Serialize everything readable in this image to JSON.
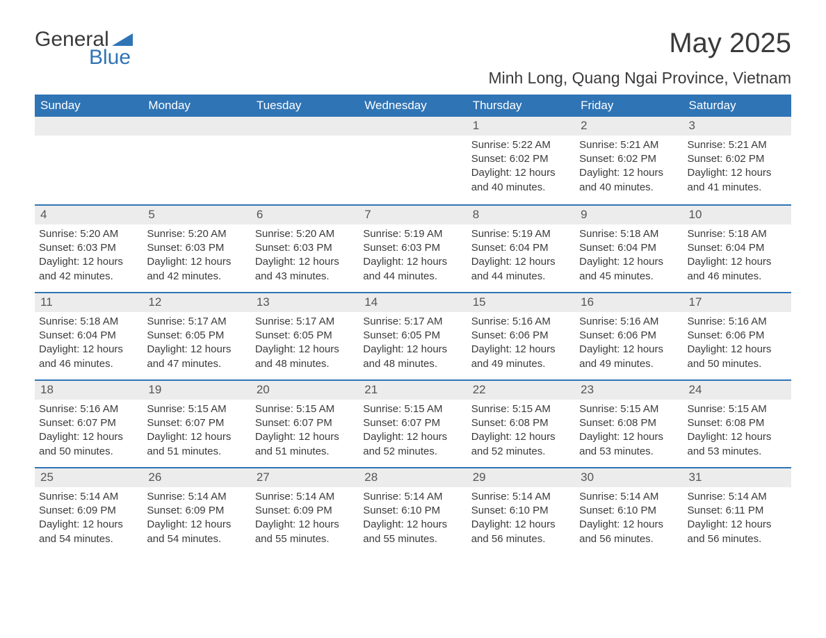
{
  "logo": {
    "word1": "General",
    "word2": "Blue"
  },
  "title": "May 2025",
  "location": "Minh Long, Quang Ngai Province, Vietnam",
  "colors": {
    "brand_blue": "#2f74b5",
    "header_text": "#ffffff",
    "row_bg": "#ececec",
    "text": "#3a3a3a",
    "background": "#ffffff"
  },
  "day_names": [
    "Sunday",
    "Monday",
    "Tuesday",
    "Wednesday",
    "Thursday",
    "Friday",
    "Saturday"
  ],
  "weeks": [
    [
      null,
      null,
      null,
      null,
      {
        "day": "1",
        "sunrise": "Sunrise: 5:22 AM",
        "sunset": "Sunset: 6:02 PM",
        "daylight1": "Daylight: 12 hours",
        "daylight2": "and 40 minutes."
      },
      {
        "day": "2",
        "sunrise": "Sunrise: 5:21 AM",
        "sunset": "Sunset: 6:02 PM",
        "daylight1": "Daylight: 12 hours",
        "daylight2": "and 40 minutes."
      },
      {
        "day": "3",
        "sunrise": "Sunrise: 5:21 AM",
        "sunset": "Sunset: 6:02 PM",
        "daylight1": "Daylight: 12 hours",
        "daylight2": "and 41 minutes."
      }
    ],
    [
      {
        "day": "4",
        "sunrise": "Sunrise: 5:20 AM",
        "sunset": "Sunset: 6:03 PM",
        "daylight1": "Daylight: 12 hours",
        "daylight2": "and 42 minutes."
      },
      {
        "day": "5",
        "sunrise": "Sunrise: 5:20 AM",
        "sunset": "Sunset: 6:03 PM",
        "daylight1": "Daylight: 12 hours",
        "daylight2": "and 42 minutes."
      },
      {
        "day": "6",
        "sunrise": "Sunrise: 5:20 AM",
        "sunset": "Sunset: 6:03 PM",
        "daylight1": "Daylight: 12 hours",
        "daylight2": "and 43 minutes."
      },
      {
        "day": "7",
        "sunrise": "Sunrise: 5:19 AM",
        "sunset": "Sunset: 6:03 PM",
        "daylight1": "Daylight: 12 hours",
        "daylight2": "and 44 minutes."
      },
      {
        "day": "8",
        "sunrise": "Sunrise: 5:19 AM",
        "sunset": "Sunset: 6:04 PM",
        "daylight1": "Daylight: 12 hours",
        "daylight2": "and 44 minutes."
      },
      {
        "day": "9",
        "sunrise": "Sunrise: 5:18 AM",
        "sunset": "Sunset: 6:04 PM",
        "daylight1": "Daylight: 12 hours",
        "daylight2": "and 45 minutes."
      },
      {
        "day": "10",
        "sunrise": "Sunrise: 5:18 AM",
        "sunset": "Sunset: 6:04 PM",
        "daylight1": "Daylight: 12 hours",
        "daylight2": "and 46 minutes."
      }
    ],
    [
      {
        "day": "11",
        "sunrise": "Sunrise: 5:18 AM",
        "sunset": "Sunset: 6:04 PM",
        "daylight1": "Daylight: 12 hours",
        "daylight2": "and 46 minutes."
      },
      {
        "day": "12",
        "sunrise": "Sunrise: 5:17 AM",
        "sunset": "Sunset: 6:05 PM",
        "daylight1": "Daylight: 12 hours",
        "daylight2": "and 47 minutes."
      },
      {
        "day": "13",
        "sunrise": "Sunrise: 5:17 AM",
        "sunset": "Sunset: 6:05 PM",
        "daylight1": "Daylight: 12 hours",
        "daylight2": "and 48 minutes."
      },
      {
        "day": "14",
        "sunrise": "Sunrise: 5:17 AM",
        "sunset": "Sunset: 6:05 PM",
        "daylight1": "Daylight: 12 hours",
        "daylight2": "and 48 minutes."
      },
      {
        "day": "15",
        "sunrise": "Sunrise: 5:16 AM",
        "sunset": "Sunset: 6:06 PM",
        "daylight1": "Daylight: 12 hours",
        "daylight2": "and 49 minutes."
      },
      {
        "day": "16",
        "sunrise": "Sunrise: 5:16 AM",
        "sunset": "Sunset: 6:06 PM",
        "daylight1": "Daylight: 12 hours",
        "daylight2": "and 49 minutes."
      },
      {
        "day": "17",
        "sunrise": "Sunrise: 5:16 AM",
        "sunset": "Sunset: 6:06 PM",
        "daylight1": "Daylight: 12 hours",
        "daylight2": "and 50 minutes."
      }
    ],
    [
      {
        "day": "18",
        "sunrise": "Sunrise: 5:16 AM",
        "sunset": "Sunset: 6:07 PM",
        "daylight1": "Daylight: 12 hours",
        "daylight2": "and 50 minutes."
      },
      {
        "day": "19",
        "sunrise": "Sunrise: 5:15 AM",
        "sunset": "Sunset: 6:07 PM",
        "daylight1": "Daylight: 12 hours",
        "daylight2": "and 51 minutes."
      },
      {
        "day": "20",
        "sunrise": "Sunrise: 5:15 AM",
        "sunset": "Sunset: 6:07 PM",
        "daylight1": "Daylight: 12 hours",
        "daylight2": "and 51 minutes."
      },
      {
        "day": "21",
        "sunrise": "Sunrise: 5:15 AM",
        "sunset": "Sunset: 6:07 PM",
        "daylight1": "Daylight: 12 hours",
        "daylight2": "and 52 minutes."
      },
      {
        "day": "22",
        "sunrise": "Sunrise: 5:15 AM",
        "sunset": "Sunset: 6:08 PM",
        "daylight1": "Daylight: 12 hours",
        "daylight2": "and 52 minutes."
      },
      {
        "day": "23",
        "sunrise": "Sunrise: 5:15 AM",
        "sunset": "Sunset: 6:08 PM",
        "daylight1": "Daylight: 12 hours",
        "daylight2": "and 53 minutes."
      },
      {
        "day": "24",
        "sunrise": "Sunrise: 5:15 AM",
        "sunset": "Sunset: 6:08 PM",
        "daylight1": "Daylight: 12 hours",
        "daylight2": "and 53 minutes."
      }
    ],
    [
      {
        "day": "25",
        "sunrise": "Sunrise: 5:14 AM",
        "sunset": "Sunset: 6:09 PM",
        "daylight1": "Daylight: 12 hours",
        "daylight2": "and 54 minutes."
      },
      {
        "day": "26",
        "sunrise": "Sunrise: 5:14 AM",
        "sunset": "Sunset: 6:09 PM",
        "daylight1": "Daylight: 12 hours",
        "daylight2": "and 54 minutes."
      },
      {
        "day": "27",
        "sunrise": "Sunrise: 5:14 AM",
        "sunset": "Sunset: 6:09 PM",
        "daylight1": "Daylight: 12 hours",
        "daylight2": "and 55 minutes."
      },
      {
        "day": "28",
        "sunrise": "Sunrise: 5:14 AM",
        "sunset": "Sunset: 6:10 PM",
        "daylight1": "Daylight: 12 hours",
        "daylight2": "and 55 minutes."
      },
      {
        "day": "29",
        "sunrise": "Sunrise: 5:14 AM",
        "sunset": "Sunset: 6:10 PM",
        "daylight1": "Daylight: 12 hours",
        "daylight2": "and 56 minutes."
      },
      {
        "day": "30",
        "sunrise": "Sunrise: 5:14 AM",
        "sunset": "Sunset: 6:10 PM",
        "daylight1": "Daylight: 12 hours",
        "daylight2": "and 56 minutes."
      },
      {
        "day": "31",
        "sunrise": "Sunrise: 5:14 AM",
        "sunset": "Sunset: 6:11 PM",
        "daylight1": "Daylight: 12 hours",
        "daylight2": "and 56 minutes."
      }
    ]
  ]
}
